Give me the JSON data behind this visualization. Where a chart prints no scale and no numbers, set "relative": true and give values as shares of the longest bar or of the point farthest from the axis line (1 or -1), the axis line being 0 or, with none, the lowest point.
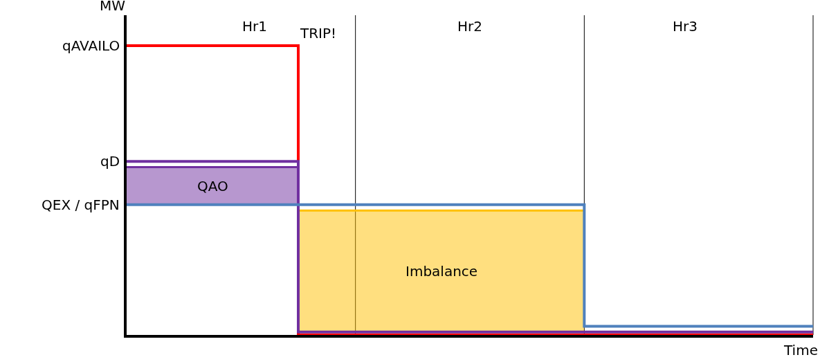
{
  "chart_data": {
    "type": "step",
    "relative": true,
    "xlabel": "Time",
    "ylabel": "MW",
    "categories": [
      null,
      null,
      null,
      null,
      null,
      null,
      null,
      null,
      null,
      null,
      null,
      null,
      null
    ],
    "series": [
      {
        "name": "QAO",
        "type": "area",
        "color": "#7030a0",
        "values": [
          0.58,
          0.58,
          0.58,
          0.58,
          null,
          null,
          null,
          null,
          null,
          null,
          null,
          null,
          null
        ]
      },
      {
        "name": "Imbalance",
        "type": "area",
        "color": "#ffc000",
        "values": [
          null,
          null,
          null,
          0.43,
          0.43,
          0.43,
          0.43,
          0.43,
          0.43,
          null,
          null,
          null,
          null
        ]
      },
      {
        "color": "#ff0000",
        "values": [
          1,
          1,
          1,
          0,
          0,
          0,
          0,
          0,
          0,
          0,
          0,
          0,
          0
        ]
      },
      {
        "color": "#7030a0",
        "values": [
          0.6,
          0.6,
          0.6,
          0.01,
          0.01,
          0.01,
          0.01,
          0.01,
          0.01,
          0.01,
          0.01,
          0.01,
          0.01
        ]
      },
      {
        "color": "#4f81bd",
        "values": [
          0.45,
          0.45,
          0.45,
          0.45,
          0.45,
          0.45,
          0.45,
          0.45,
          0.03,
          0.03,
          0.03,
          0.03,
          0.03
        ]
      }
    ],
    "annotations": [
      "Hr1",
      "Hr2",
      "Hr3",
      "TRIP!",
      "qAVAILO",
      "qD",
      "QEX / qFPN"
    ],
    "grid": false
  }
}
